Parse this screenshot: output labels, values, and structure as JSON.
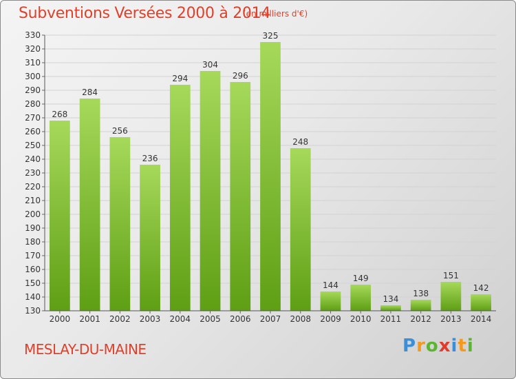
{
  "header": {
    "title": "Subventions Versées 2000 à 2014",
    "subtitle": "(en milliers d'€)"
  },
  "footer": {
    "place": "MESLAY-DU-MAINE",
    "brand": "Proxiti"
  },
  "colors": {
    "title": "#e0402a",
    "bar_light": "#a6d95a",
    "bar_dark": "#5e9f14"
  },
  "chart_data": {
    "type": "bar",
    "categories": [
      "2000",
      "2001",
      "2002",
      "2003",
      "2004",
      "2005",
      "2006",
      "2007",
      "2008",
      "2009",
      "2010",
      "2011",
      "2012",
      "2013",
      "2014"
    ],
    "values": [
      268,
      284,
      256,
      236,
      294,
      304,
      296,
      325,
      248,
      144,
      149,
      134,
      138,
      151,
      142
    ],
    "title": "Subventions Versées 2000 à 2014",
    "xlabel": "",
    "ylabel": "",
    "ylim": [
      130,
      330
    ],
    "yticks": [
      130,
      140,
      150,
      160,
      170,
      180,
      190,
      200,
      210,
      220,
      230,
      240,
      250,
      260,
      270,
      280,
      290,
      300,
      310,
      320,
      330
    ],
    "grid": true
  }
}
